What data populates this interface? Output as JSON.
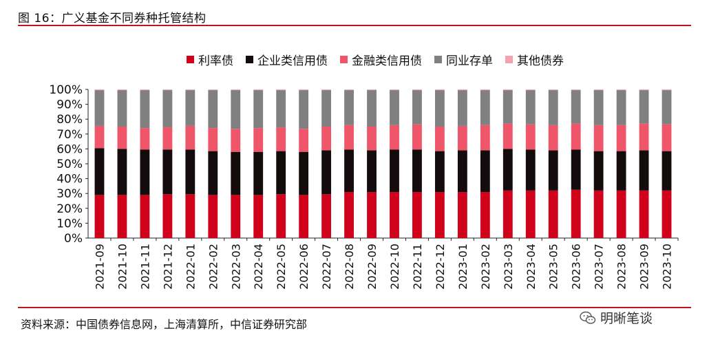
{
  "figure_title": "图 16：广义基金不同券种托管结构",
  "source_text": "资料来源：中国债券信息网，上海清算所，中信证券研究部",
  "watermark_text": "明晰笔谈",
  "colors": {
    "rate_bond": "#d0021b",
    "enterprise_credit": "#140c0c",
    "financial_credit": "#f0566a",
    "ncd": "#808080",
    "other": "#f4a3ae",
    "rule": "#c1121f"
  },
  "chart_data": {
    "type": "bar",
    "stacked": true,
    "percent_stacked": true,
    "categories": [
      "2021-09",
      "2021-10",
      "2021-11",
      "2021-12",
      "2022-01",
      "2022-02",
      "2022-03",
      "2022-04",
      "2022-05",
      "2022-06",
      "2022-07",
      "2022-08",
      "2022-09",
      "2022-10",
      "2022-11",
      "2022-12",
      "2023-01",
      "2023-02",
      "2023-03",
      "2023-04",
      "2023-05",
      "2023-06",
      "2023-07",
      "2023-08",
      "2023-09",
      "2023-10"
    ],
    "series": [
      {
        "name": "利率债",
        "values": [
          29,
          29,
          29,
          29.5,
          29.5,
          29,
          29,
          29,
          29.5,
          29,
          29.5,
          31,
          31,
          31,
          31,
          31,
          31,
          31,
          32,
          32,
          32,
          32.5,
          32,
          32,
          32,
          32
        ]
      },
      {
        "name": "企业类信用债",
        "values": [
          31.5,
          31,
          30.5,
          30,
          30,
          29.5,
          29,
          29,
          29,
          29,
          29.5,
          28.5,
          28,
          28.5,
          28.5,
          27.5,
          28,
          28,
          28,
          27.5,
          27,
          27,
          26.5,
          26.5,
          27,
          26.5
        ]
      },
      {
        "name": "金融类信用债",
        "values": [
          15,
          15,
          14.5,
          15,
          16,
          15.5,
          15.5,
          16,
          16,
          15.5,
          16,
          16.5,
          16,
          16.5,
          17,
          16.5,
          16.5,
          17,
          17,
          17,
          17,
          17.5,
          17.5,
          17.5,
          18,
          18
        ]
      },
      {
        "name": "同业存单",
        "values": [
          24,
          24.5,
          25.5,
          25,
          24,
          25.5,
          26,
          25.5,
          25,
          26,
          24.5,
          23.5,
          24.5,
          23.5,
          23,
          24.5,
          24,
          23.5,
          22.5,
          23,
          23.5,
          22.5,
          23.5,
          23.5,
          22.5,
          23
        ]
      },
      {
        "name": "其他债券",
        "values": [
          0.5,
          0.5,
          0.5,
          0.5,
          0.5,
          0.5,
          0.5,
          0.5,
          0.5,
          0.5,
          0.5,
          0.5,
          0.5,
          0.5,
          0.5,
          0.5,
          0.5,
          0.5,
          0.5,
          0.5,
          0.5,
          0.5,
          0.5,
          0.5,
          0.5,
          0.5
        ]
      }
    ],
    "yticks": [
      "0%",
      "10%",
      "20%",
      "30%",
      "40%",
      "50%",
      "60%",
      "70%",
      "80%",
      "90%",
      "100%"
    ],
    "ylim": [
      0,
      100
    ],
    "title": "",
    "xlabel": "",
    "ylabel": "",
    "legend_position": "top",
    "grid": false
  }
}
